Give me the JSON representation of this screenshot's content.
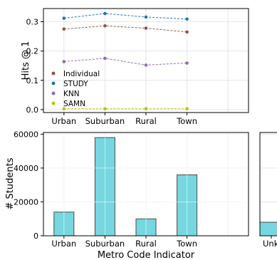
{
  "colors": {
    "individual": "#8c564b",
    "study": "#1f77b4",
    "knn": "#9467bd",
    "samn": "#bcbd22",
    "bar_fill": "#76d7e0",
    "bar_edge": "#4a4a4a",
    "grid": "#e5e5e5"
  },
  "chart_data": [
    {
      "type": "line",
      "title": "",
      "xlabel": "",
      "ylabel": "Hits @ 1",
      "categories": [
        "Urban",
        "Suburban",
        "Rural",
        "Town"
      ],
      "ylim": [
        -0.01,
        0.345
      ],
      "yticks": [
        0.0,
        0.1,
        0.2,
        0.3
      ],
      "ytick_labels": [
        "0.0",
        "0.1",
        "0.2",
        "0.3"
      ],
      "grid": true,
      "legend_position": "lower-left",
      "series": [
        {
          "name": "Individual",
          "color_key": "individual",
          "values": [
            0.275,
            0.286,
            0.278,
            0.265
          ]
        },
        {
          "name": "STUDY",
          "color_key": "study",
          "values": [
            0.312,
            0.328,
            0.316,
            0.309
          ]
        },
        {
          "name": "KNN",
          "color_key": "knn",
          "values": [
            0.164,
            0.175,
            0.152,
            0.159
          ]
        },
        {
          "name": "SAMN",
          "color_key": "samn",
          "values": [
            0.003,
            0.003,
            0.003,
            0.003
          ]
        }
      ]
    },
    {
      "type": "bar",
      "title": "",
      "xlabel": "Metro Code Indicator",
      "ylabel": "# Students",
      "categories": [
        "Urban",
        "Suburban",
        "Rural",
        "Town"
      ],
      "values": [
        14000,
        58000,
        10000,
        36000
      ],
      "ylim": [
        0,
        61000
      ],
      "yticks": [
        0,
        20000,
        40000,
        60000
      ],
      "ytick_labels": [
        "0",
        "20000",
        "40000",
        "60000"
      ],
      "grid": true
    },
    {
      "type": "bar",
      "title": "",
      "xlabel": "",
      "ylabel": "",
      "categories": [
        "Unk"
      ],
      "values": [
        8000
      ],
      "ylim": [
        0,
        61000
      ],
      "grid": true
    }
  ]
}
